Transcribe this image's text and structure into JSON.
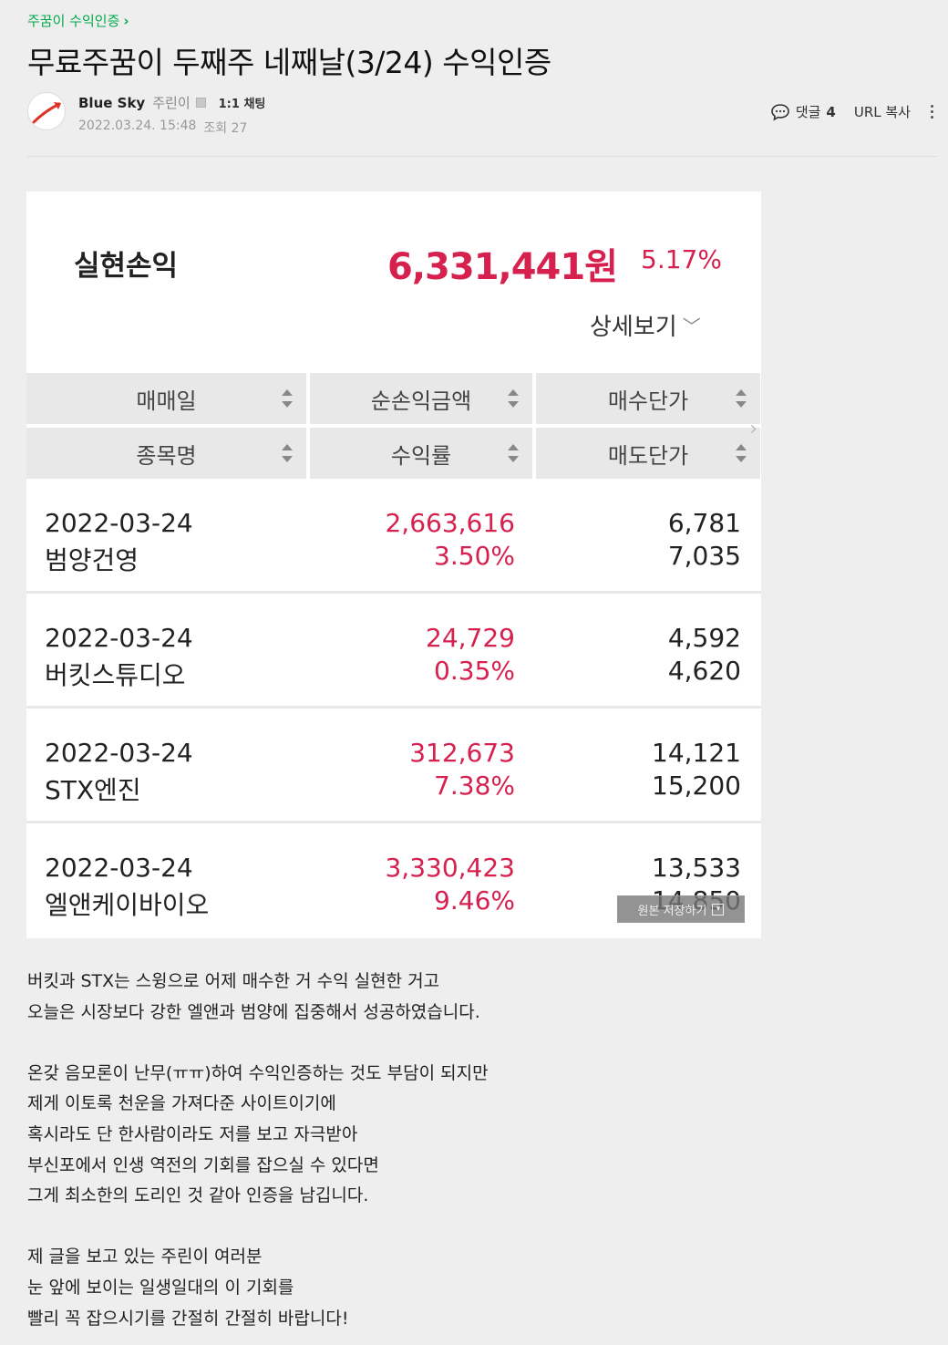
{
  "board": {
    "name": "주꿈이 수익인증"
  },
  "post": {
    "title": "무료주꿈이 두째주 네째날(3/24) 수익인증",
    "author": "Blue Sky",
    "grade": "주린이",
    "chat_label": "1:1 채팅",
    "date": "2022.03.24. 15:48",
    "views_label": "조회 27"
  },
  "tools": {
    "comment_label": "댓글",
    "comment_count": "4",
    "url_copy_label": "URL 복사"
  },
  "screenshot": {
    "summary_label": "실현손익",
    "summary_amount": "6,331,441원",
    "summary_rate": "5.17%",
    "detail_label": "상세보기",
    "headers_row1": [
      "매매일",
      "순손익금액",
      "매수단가"
    ],
    "headers_row2": [
      "종목명",
      "수익률",
      "매도단가"
    ],
    "trades": [
      {
        "date": "2022-03-24",
        "name": "범양건영",
        "profit": "2,663,616",
        "rate": "3.50%",
        "buy": "6,781",
        "sell": "7,035"
      },
      {
        "date": "2022-03-24",
        "name": "버킷스튜디오",
        "profit": "24,729",
        "rate": "0.35%",
        "buy": "4,592",
        "sell": "4,620"
      },
      {
        "date": "2022-03-24",
        "name": "STX엔진",
        "profit": "312,673",
        "rate": "7.38%",
        "buy": "14,121",
        "sell": "15,200"
      },
      {
        "date": "2022-03-24",
        "name": "엘앤케이바이오",
        "profit": "3,330,423",
        "rate": "9.46%",
        "buy": "13,533",
        "sell": "14,850"
      }
    ],
    "save_original_label": "원본 저장하기"
  },
  "body_lines": [
    "버킷과 STX는 스윙으로 어제 매수한 거 수익 실현한 거고",
    "오늘은 시장보다 강한  엘앤과 범양에 집중해서 성공하였습니다.",
    "",
    "온갖 음모론이 난무(ㅠㅠ)하여 수익인증하는 것도 부담이 되지만",
    "제게 이토록 천운을 가져다준 사이트이기에",
    "혹시라도 단 한사람이라도 저를 보고 자극받아",
    "부신포에서 인생 역전의 기회를 잡으실 수 있다면",
    "그게 최소한의 도리인 것 같아 인증을 남깁니다.",
    "",
    "제 글을 보고 있는 주린이 여러분",
    "눈 앞에 보이는 일생일대의 이 기회를",
    "빨리 꼭 잡으시기를 간절히 간절히 바랍니다!"
  ],
  "colors": {
    "accent_green": "#03a94b",
    "profit_red": "#d6214f"
  }
}
